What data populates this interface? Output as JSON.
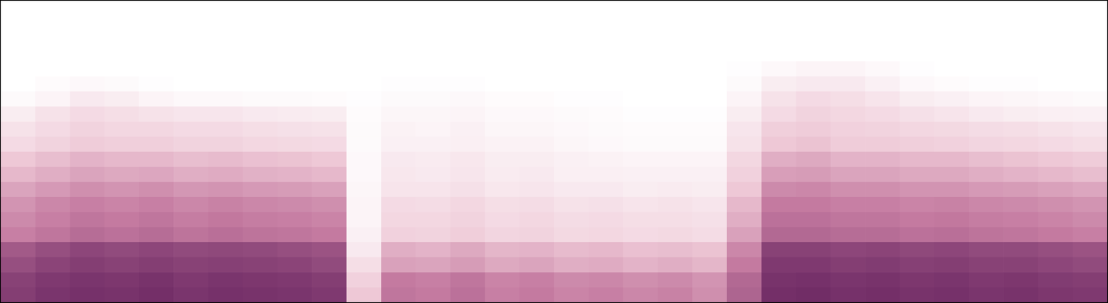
{
  "chart_data": {
    "type": "heatmap",
    "xlim": [
      0,
      32
    ],
    "ylim": [
      0,
      20
    ],
    "zlim": [
      0,
      100
    ],
    "tick_labels": false,
    "grid": false,
    "cells": [
      [
        88,
        92,
        94,
        93,
        95,
        92,
        94,
        93,
        92,
        90,
        30,
        62,
        60,
        64,
        58,
        60,
        56,
        58,
        55,
        57,
        52,
        70,
        95,
        96,
        94,
        95,
        93,
        94,
        92,
        93,
        91,
        90
      ],
      [
        86,
        90,
        92,
        91,
        93,
        90,
        92,
        91,
        90,
        88,
        25,
        60,
        58,
        62,
        56,
        58,
        54,
        55,
        52,
        54,
        50,
        68,
        93,
        94,
        92,
        93,
        91,
        92,
        90,
        91,
        89,
        88
      ],
      [
        80,
        85,
        88,
        86,
        88,
        86,
        87,
        86,
        85,
        82,
        18,
        45,
        44,
        47,
        42,
        44,
        40,
        41,
        38,
        40,
        37,
        60,
        90,
        90,
        88,
        89,
        87,
        88,
        86,
        86,
        84,
        82
      ],
      [
        75,
        80,
        84,
        82,
        84,
        82,
        83,
        82,
        80,
        78,
        12,
        40,
        38,
        42,
        37,
        38,
        35,
        36,
        33,
        34,
        32,
        55,
        86,
        86,
        84,
        85,
        83,
        84,
        82,
        82,
        80,
        78
      ],
      [
        58,
        62,
        66,
        64,
        66,
        63,
        65,
        63,
        62,
        60,
        8,
        25,
        24,
        27,
        23,
        24,
        21,
        22,
        20,
        21,
        19,
        45,
        68,
        68,
        66,
        66,
        64,
        65,
        63,
        62,
        60,
        58
      ],
      [
        54,
        58,
        62,
        60,
        62,
        59,
        61,
        59,
        58,
        56,
        6,
        22,
        22,
        24,
        20,
        22,
        19,
        20,
        18,
        18,
        17,
        40,
        64,
        64,
        62,
        62,
        60,
        61,
        59,
        58,
        56,
        54
      ],
      [
        50,
        55,
        58,
        56,
        58,
        55,
        57,
        55,
        54,
        52,
        6,
        20,
        19,
        22,
        18,
        19,
        16,
        17,
        15,
        16,
        14,
        36,
        60,
        60,
        58,
        58,
        56,
        57,
        55,
        54,
        52,
        50
      ],
      [
        44,
        48,
        52,
        50,
        52,
        49,
        50,
        48,
        47,
        45,
        5,
        15,
        15,
        17,
        13,
        14,
        12,
        12,
        10,
        11,
        10,
        30,
        54,
        55,
        52,
        52,
        50,
        50,
        48,
        47,
        45,
        43
      ],
      [
        36,
        40,
        44,
        42,
        43,
        40,
        41,
        39,
        38,
        36,
        4,
        13,
        12,
        14,
        11,
        12,
        9,
        9,
        8,
        8,
        8,
        25,
        46,
        47,
        44,
        44,
        42,
        42,
        40,
        38,
        36,
        34
      ],
      [
        30,
        34,
        38,
        36,
        36,
        34,
        35,
        33,
        32,
        30,
        4,
        12,
        11,
        13,
        10,
        10,
        8,
        7,
        6,
        6,
        6,
        22,
        40,
        42,
        38,
        38,
        36,
        36,
        34,
        32,
        30,
        28
      ],
      [
        20,
        24,
        28,
        26,
        26,
        24,
        24,
        22,
        21,
        20,
        3,
        8,
        8,
        9,
        7,
        7,
        5,
        4,
        3,
        3,
        3,
        16,
        30,
        32,
        28,
        28,
        26,
        25,
        23,
        22,
        20,
        18
      ],
      [
        16,
        20,
        24,
        22,
        22,
        20,
        20,
        18,
        17,
        16,
        3,
        7,
        6,
        8,
        5,
        5,
        4,
        3,
        2,
        2,
        2,
        14,
        26,
        28,
        25,
        24,
        22,
        21,
        19,
        18,
        16,
        14
      ],
      [
        10,
        16,
        20,
        18,
        16,
        14,
        14,
        12,
        11,
        10,
        2,
        5,
        5,
        6,
        4,
        4,
        3,
        2,
        1,
        1,
        1,
        10,
        20,
        24,
        22,
        20,
        17,
        15,
        12,
        10,
        9,
        8
      ],
      [
        3,
        6,
        12,
        10,
        6,
        4,
        4,
        3,
        3,
        2,
        1,
        3,
        3,
        4,
        2,
        2,
        1,
        1,
        0,
        0,
        0,
        6,
        16,
        20,
        18,
        15,
        10,
        8,
        6,
        5,
        4,
        3
      ],
      [
        0,
        2,
        4,
        3,
        1,
        0,
        0,
        0,
        0,
        0,
        0,
        1,
        1,
        1,
        0,
        0,
        0,
        0,
        0,
        0,
        0,
        3,
        10,
        12,
        12,
        8,
        4,
        2,
        1,
        1,
        0,
        0
      ],
      [
        0,
        0,
        0,
        0,
        0,
        0,
        0,
        0,
        0,
        0,
        0,
        0,
        0,
        0,
        0,
        0,
        0,
        0,
        0,
        0,
        0,
        1,
        4,
        6,
        6,
        4,
        1,
        0,
        0,
        0,
        0,
        0
      ],
      [
        0,
        0,
        0,
        0,
        0,
        0,
        0,
        0,
        0,
        0,
        0,
        0,
        0,
        0,
        0,
        0,
        0,
        0,
        0,
        0,
        0,
        0,
        0,
        0,
        0,
        0,
        0,
        0,
        0,
        0,
        0,
        0
      ],
      [
        0,
        0,
        0,
        0,
        0,
        0,
        0,
        0,
        0,
        0,
        0,
        0,
        0,
        0,
        0,
        0,
        0,
        0,
        0,
        0,
        0,
        0,
        0,
        0,
        0,
        0,
        0,
        0,
        0,
        0,
        0,
        0
      ],
      [
        0,
        0,
        0,
        0,
        0,
        0,
        0,
        0,
        0,
        0,
        0,
        0,
        0,
        0,
        0,
        0,
        0,
        0,
        0,
        0,
        0,
        0,
        0,
        0,
        0,
        0,
        0,
        0,
        0,
        0,
        0,
        0
      ],
      [
        0,
        0,
        0,
        0,
        0,
        0,
        0,
        0,
        0,
        0,
        0,
        0,
        0,
        0,
        0,
        0,
        0,
        0,
        0,
        0,
        0,
        0,
        0,
        0,
        0,
        0,
        0,
        0,
        0,
        0,
        0,
        0
      ]
    ]
  }
}
